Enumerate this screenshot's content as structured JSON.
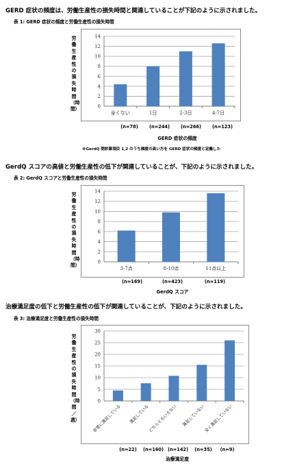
{
  "sections": [
    {
      "heading": "GERD 症状の頻度は、労働生産性の損失時間と関連していることが下記のように示されました。",
      "caption": "表 1:  GERD 症状の頻度と労働生産性の損失時間",
      "ylabel": "労働生産性の損失時間（時間）",
      "xtitle": "GERD 症状の頻度",
      "n_labels": [
        "(n=78)",
        "(n=244)",
        "(n=266)",
        "(n=123)"
      ],
      "footnote": "※GerdQ 問診票項目 1,2 のうち頻度の高い方を GERD 症状の頻度と定義した"
    },
    {
      "heading": "GerdQ スコアの高値と労働生産性の低下が関連していることが、下記のように示されました。",
      "caption": "表 2:  GerdQ スコアと労働生産性の損失時間",
      "ylabel": "労働生産性の損失時間（時間）",
      "xtitle": "GerdQ スコア",
      "n_labels": [
        "(n=169)",
        "(n=423)",
        "(n=119)"
      ]
    },
    {
      "heading": "治療満足度の低下と労働生産性の低下が関連していることが、下記のように示されました。",
      "caption": "表 3:  治療満足度と労働生産性の損失時間",
      "ylabel": "労働生産性の損失時間（時間／週）",
      "xtitle": "治療満足度",
      "n_labels": [
        "(n=22)",
        "(n=160)",
        "(n=142)",
        "(n=35)",
        "(n=9)"
      ]
    }
  ],
  "chart_data": [
    {
      "type": "bar",
      "categories": [
        "全くない",
        "1日",
        "2-3日",
        "4-7日"
      ],
      "values": [
        4.4,
        8.0,
        11.0,
        12.6
      ],
      "ylim": [
        0,
        14
      ],
      "yticks": [
        0,
        2,
        4,
        6,
        8,
        10,
        12,
        14
      ],
      "xlabel": "GERD 症状の頻度",
      "ylabel": "労働生産性の損失時間（時間）",
      "grid": true,
      "bar_color": "#4f81bd"
    },
    {
      "type": "bar",
      "categories": [
        "3-7点",
        "8-10点",
        "11点以上"
      ],
      "values": [
        6.2,
        9.8,
        13.6
      ],
      "ylim": [
        0,
        14
      ],
      "yticks": [
        0,
        2,
        4,
        6,
        8,
        10,
        12,
        14
      ],
      "xlabel": "GerdQ スコア",
      "ylabel": "労働生産性の損失時間（時間）",
      "grid": true,
      "bar_color": "#4f81bd"
    },
    {
      "type": "bar",
      "categories": [
        "非常に満足している",
        "満足している",
        "どちらともいえない",
        "満足していない",
        "全く満足していない"
      ],
      "values": [
        4.5,
        7.6,
        10.8,
        15.5,
        26.0
      ],
      "ylim": [
        0,
        30
      ],
      "yticks": [
        0,
        5,
        10,
        15,
        20,
        25,
        30
      ],
      "xlabel": "治療満足度",
      "ylabel": "労働生産性の損失時間（時間／週）",
      "grid": true,
      "bar_color": "#4f81bd"
    }
  ]
}
